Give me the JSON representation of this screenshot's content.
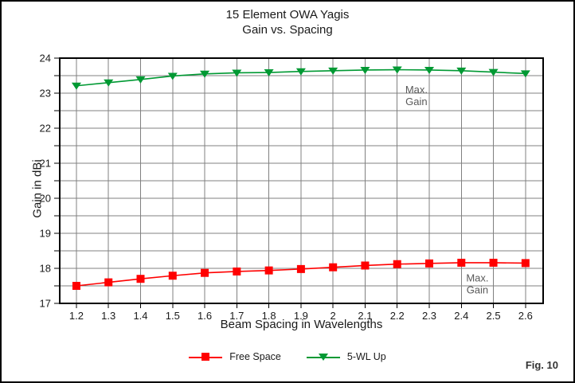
{
  "page": {
    "fig_label": "Fig. 10"
  },
  "chart_data": {
    "type": "line",
    "title": "15 Element OWA Yagis",
    "subtitle": "Gain vs. Spacing",
    "xlabel": "Beam Spacing in Wavelengths",
    "ylabel": "Gain in dBi",
    "xlim": [
      1.148,
      2.655
    ],
    "ylim": [
      17,
      24
    ],
    "grid": true,
    "legend_position": "bottom-center",
    "x_ticks": [
      1.2,
      1.3,
      1.4,
      1.5,
      1.6,
      1.7,
      1.8,
      1.9,
      2.0,
      2.1,
      2.2,
      2.3,
      2.4,
      2.5,
      2.6
    ],
    "x_tick_labels": [
      "1.2",
      "1.3",
      "1.4",
      "1.5",
      "1.6",
      "1.7",
      "1.8",
      "1.9",
      "2",
      "2.1",
      "2.2",
      "2.3",
      "2.4",
      "2.5",
      "2.6"
    ],
    "y_tick_labels": [
      "17",
      "18",
      "19",
      "20",
      "21",
      "22",
      "23",
      "24"
    ],
    "y_major_step": 1,
    "y_minor_step": 0.5,
    "x": [
      1.2,
      1.3,
      1.4,
      1.5,
      1.6,
      1.7,
      1.8,
      1.9,
      2.0,
      2.1,
      2.2,
      2.3,
      2.4,
      2.5,
      2.6
    ],
    "series": [
      {
        "name": "Free Space",
        "color": "#FF0000",
        "marker": "square",
        "values": [
          17.5,
          17.6,
          17.7,
          17.79,
          17.87,
          17.91,
          17.94,
          17.98,
          18.03,
          18.08,
          18.12,
          18.14,
          18.16,
          18.16,
          18.15
        ]
      },
      {
        "name": "5-WL Up",
        "color": "#009933",
        "marker": "triangle-down",
        "values": [
          23.21,
          23.3,
          23.39,
          23.49,
          23.55,
          23.58,
          23.59,
          23.62,
          23.64,
          23.66,
          23.67,
          23.66,
          23.64,
          23.6,
          23.56
        ]
      }
    ],
    "annotations": [
      {
        "text_lines": [
          "Max.",
          "Gain"
        ],
        "x": 2.26,
        "y": 22.95,
        "series": "5-WL Up"
      },
      {
        "text_lines": [
          "Max.",
          "Gain"
        ],
        "x": 2.45,
        "y": 17.58,
        "series": "Free Space"
      }
    ],
    "colors": {
      "grid": "#808080",
      "axis": "#000000",
      "text": "#1a1a1a",
      "annotation": "#595959"
    }
  }
}
